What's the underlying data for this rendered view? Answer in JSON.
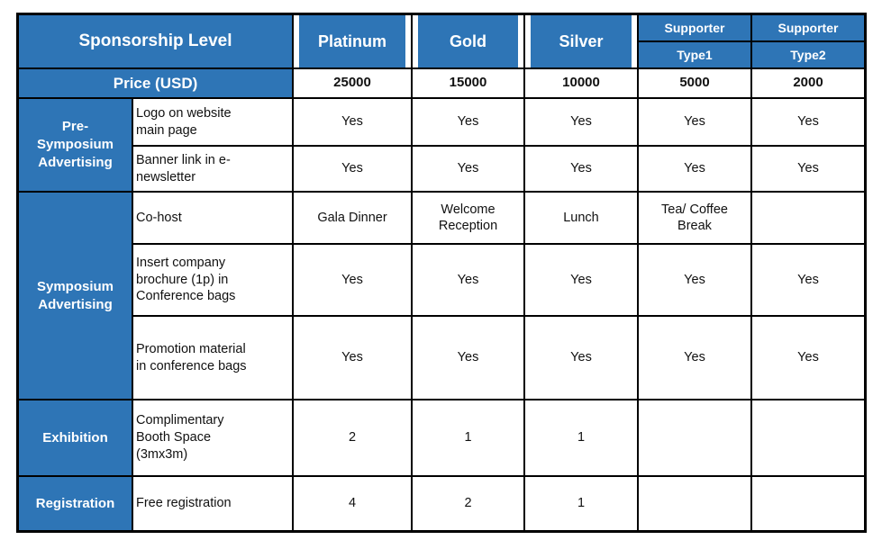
{
  "colors": {
    "header_blue": "#2E75B6",
    "grid_border": "#000000",
    "header_text": "#ffffff",
    "body_text": "#111111"
  },
  "table": {
    "header": {
      "col_label": "Sponsorship Level",
      "tiers": [
        "Platinum",
        "Gold",
        "Silver"
      ],
      "supporter1": {
        "line1": "Supporter",
        "line2": "Type1"
      },
      "supporter2": {
        "line1": "Supporter",
        "line2": "Type2"
      }
    },
    "price": {
      "label": "Price (USD)",
      "values": [
        "25000",
        "15000",
        "10000",
        "5000",
        "2000"
      ]
    },
    "categories": [
      "Pre-\nSymposium\nAdvertising",
      "Symposium\nAdvertising",
      "Exhibition",
      "Registration"
    ],
    "rows": [
      {
        "item": "Logo on website\nmain page",
        "v": [
          "Yes",
          "Yes",
          "Yes",
          "Yes",
          "Yes"
        ]
      },
      {
        "item": "Banner link in e-\nnewsletter",
        "v": [
          "Yes",
          "Yes",
          "Yes",
          "Yes",
          "Yes"
        ]
      },
      {
        "item": "Co-host",
        "v": [
          "Gala Dinner",
          "Welcome\nReception",
          "Lunch",
          "Tea/ Coffee\nBreak",
          ""
        ]
      },
      {
        "item": "Insert company\nbrochure (1p) in\nConference bags",
        "v": [
          "Yes",
          "Yes",
          "Yes",
          "Yes",
          "Yes"
        ]
      },
      {
        "item": "Promotion material\nin conference bags",
        "v": [
          "Yes",
          "Yes",
          "Yes",
          "Yes",
          "Yes"
        ]
      },
      {
        "item": "Complimentary\nBooth Space\n(3mx3m)",
        "v": [
          "2",
          "1",
          "1",
          "",
          ""
        ]
      },
      {
        "item": "Free registration",
        "v": [
          "4",
          "2",
          "1",
          "",
          ""
        ]
      }
    ]
  }
}
